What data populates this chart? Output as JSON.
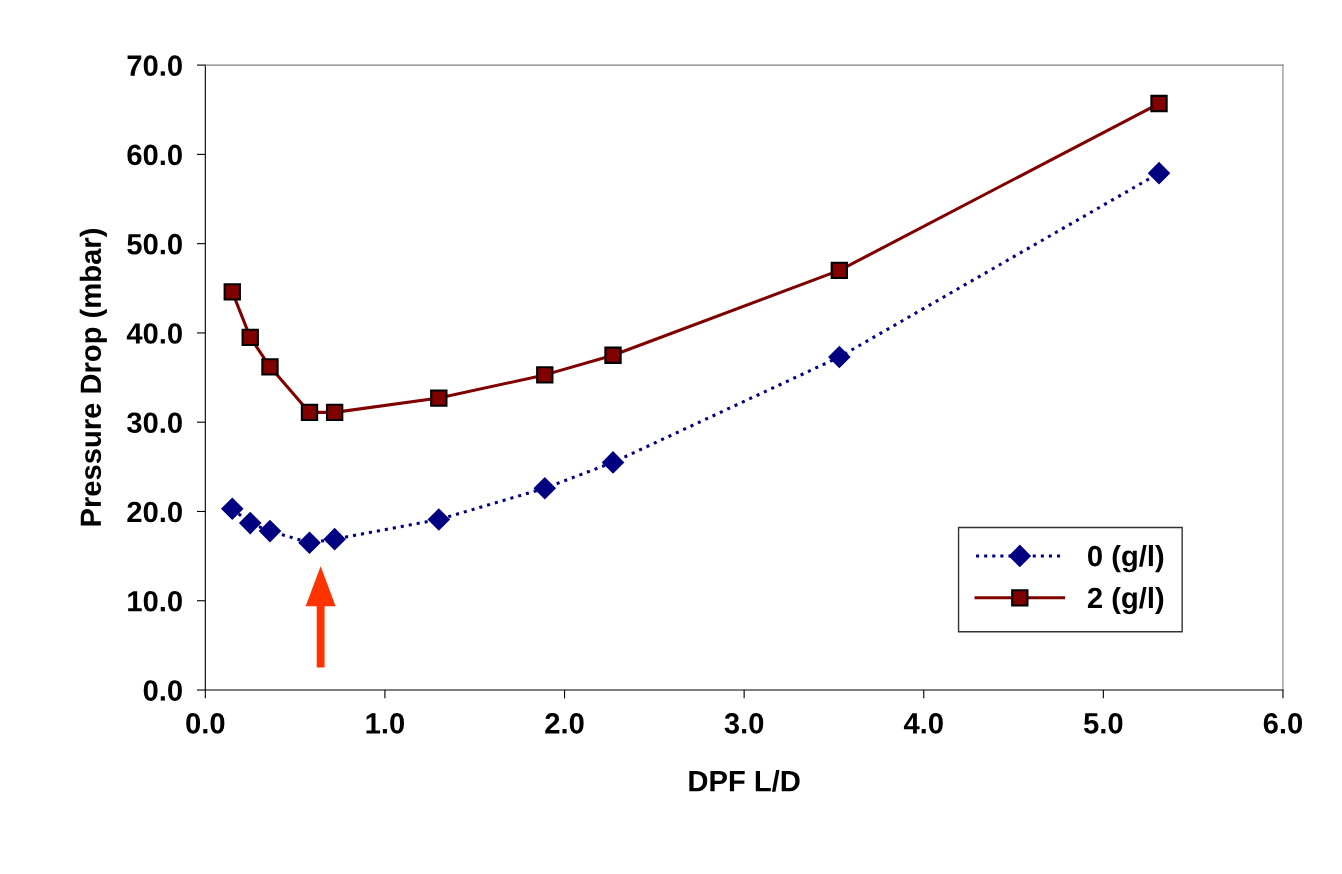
{
  "chart_data": {
    "type": "line",
    "xlabel": "DPF L/D",
    "ylabel": "Pressure Drop (mbar)",
    "series": [
      {
        "name": "0 (g/l)",
        "color": "#000080",
        "marker": "diamond",
        "line_style": "dotted",
        "x": [
          0.15,
          0.25,
          0.36,
          0.58,
          0.72,
          1.3,
          1.89,
          2.27,
          3.53,
          5.31
        ],
        "values": [
          20.3,
          18.7,
          17.8,
          16.5,
          16.9,
          19.1,
          22.6,
          25.5,
          37.3,
          57.9
        ]
      },
      {
        "name": "2 (g/l)",
        "color": "#800000",
        "marker": "square",
        "line_style": "solid",
        "x": [
          0.15,
          0.25,
          0.36,
          0.58,
          0.72,
          1.3,
          1.89,
          2.27,
          3.53,
          5.31
        ],
        "values": [
          44.6,
          39.5,
          36.2,
          31.1,
          31.1,
          32.7,
          35.3,
          37.5,
          47.0,
          65.7
        ]
      }
    ],
    "xlim": [
      0,
      6
    ],
    "ylim": [
      0,
      70
    ],
    "xticks": [
      {
        "value": 0,
        "label": "0.0"
      },
      {
        "value": 1,
        "label": "1.0"
      },
      {
        "value": 2,
        "label": "2.0"
      },
      {
        "value": 3,
        "label": "3.0"
      },
      {
        "value": 4,
        "label": "4.0"
      },
      {
        "value": 5,
        "label": "5.0"
      },
      {
        "value": 6,
        "label": "6.0"
      }
    ],
    "yticks": [
      {
        "value": 0,
        "label": "0.0"
      },
      {
        "value": 10,
        "label": "10.0"
      },
      {
        "value": 20,
        "label": "20.0"
      },
      {
        "value": 30,
        "label": "30.0"
      },
      {
        "value": 40,
        "label": "40.0"
      },
      {
        "value": 50,
        "label": "50.0"
      },
      {
        "value": 60,
        "label": "60.0"
      },
      {
        "value": 70,
        "label": "70.0"
      }
    ],
    "grid": false,
    "legend": "bottom right"
  }
}
